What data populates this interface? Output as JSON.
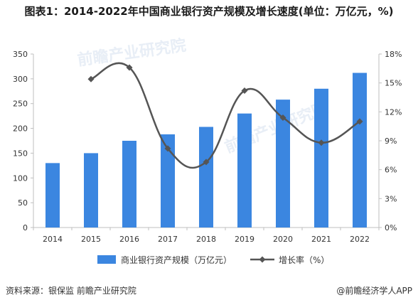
{
  "title": "图表1：2014-2022年中国商业银行资产规模及增长速度(单位：万亿元，%)",
  "footer": {
    "source": "资料来源：银保监 前瞻产业研究院",
    "brand": "@前瞻经济学人APP"
  },
  "watermark": "前瞻产业研究院",
  "colors": {
    "bar": "#3b86e0",
    "line": "#555555",
    "axis": "#bfbfbf"
  },
  "chart_data": {
    "type": "bar+line",
    "categories": [
      "2014",
      "2015",
      "2016",
      "2017",
      "2018",
      "2019",
      "2020",
      "2021",
      "2022"
    ],
    "series": [
      {
        "name": "商业银行资产规模（万亿元）",
        "type": "bar",
        "axis": "left",
        "values": [
          130,
          150,
          175,
          188,
          203,
          230,
          258,
          280,
          312
        ]
      },
      {
        "name": "增长率（%）",
        "type": "line",
        "axis": "right",
        "values": [
          null,
          15.4,
          16.6,
          8.2,
          6.8,
          14.2,
          11.4,
          8.8,
          11.0
        ]
      }
    ],
    "y_left": {
      "min": 0,
      "max": 350,
      "step": 50,
      "ticks": [
        "0",
        "50",
        "100",
        "150",
        "200",
        "250",
        "300",
        "350"
      ]
    },
    "y_right": {
      "min": 0,
      "max": 18,
      "step": 3,
      "ticks": [
        "0%",
        "3%",
        "6%",
        "9%",
        "12%",
        "15%",
        "18%"
      ]
    },
    "legend": {
      "position": "bottom"
    },
    "grid": false
  }
}
